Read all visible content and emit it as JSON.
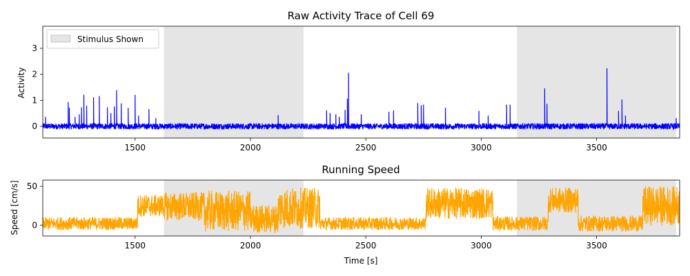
{
  "chart_data": [
    {
      "type": "line",
      "title": "Raw Activity Trace of Cell 69",
      "xlabel": "",
      "ylabel": "Activity",
      "xlim": [
        1100,
        3860
      ],
      "ylim": [
        -0.45,
        3.85
      ],
      "xticks": [
        1500,
        2000,
        2500,
        3000,
        3500
      ],
      "yticks": [
        0,
        1,
        2,
        3
      ],
      "legend": {
        "entries": [
          "Stimulus Shown"
        ],
        "placement": "top-left"
      },
      "stimulus_intervals": [
        [
          1625,
          2230
        ],
        [
          3155,
          3845
        ]
      ],
      "colors": {
        "trace": "#0000ff",
        "stimulus": "#d3d3d3"
      },
      "baseline": {
        "value": 0,
        "noise": 0.12
      },
      "series": [
        {
          "color": "#0000ff",
          "peaks": [
            [
              1112,
              0.35
            ],
            [
              1210,
              0.92
            ],
            [
              1215,
              0.7
            ],
            [
              1240,
              0.35
            ],
            [
              1258,
              0.45
            ],
            [
              1268,
              0.72
            ],
            [
              1278,
              1.2
            ],
            [
              1290,
              0.78
            ],
            [
              1320,
              1.1
            ],
            [
              1345,
              1.15
            ],
            [
              1380,
              0.72
            ],
            [
              1395,
              0.5
            ],
            [
              1410,
              0.75
            ],
            [
              1420,
              1.38
            ],
            [
              1440,
              0.87
            ],
            [
              1470,
              0.7
            ],
            [
              1500,
              1.2
            ],
            [
              1515,
              0.4
            ],
            [
              1560,
              0.65
            ],
            [
              1590,
              0.3
            ],
            [
              2120,
              0.42
            ],
            [
              2330,
              0.6
            ],
            [
              2345,
              0.5
            ],
            [
              2370,
              0.45
            ],
            [
              2385,
              0.35
            ],
            [
              2410,
              0.62
            ],
            [
              2420,
              1.05
            ],
            [
              2425,
              2.05
            ],
            [
              2480,
              0.45
            ],
            [
              2600,
              0.55
            ],
            [
              2620,
              0.6
            ],
            [
              2725,
              0.88
            ],
            [
              2740,
              0.8
            ],
            [
              2750,
              0.82
            ],
            [
              2845,
              0.7
            ],
            [
              2990,
              0.58
            ],
            [
              3030,
              0.4
            ],
            [
              3110,
              0.82
            ],
            [
              3125,
              0.82
            ],
            [
              3275,
              1.45
            ],
            [
              3285,
              0.85
            ],
            [
              3545,
              2.22
            ],
            [
              3595,
              0.58
            ],
            [
              3610,
              1.02
            ],
            [
              3625,
              0.4
            ],
            [
              3845,
              0.3
            ]
          ]
        }
      ]
    },
    {
      "type": "line",
      "title": "Running Speed",
      "xlabel": "Time [s]",
      "ylabel": "Speed [cm/s]",
      "xlim": [
        1100,
        3860
      ],
      "ylim": [
        -14,
        58
      ],
      "xticks": [
        1500,
        2000,
        2500,
        3000,
        3500
      ],
      "yticks": [
        0,
        50
      ],
      "stimulus_intervals": [
        [
          1625,
          2230
        ],
        [
          3155,
          3845
        ]
      ],
      "colors": {
        "trace": "#ffa500",
        "stimulus": "#d3d3d3"
      },
      "series": [
        {
          "color": "#ffa500",
          "segments": [
            {
              "x": [
                1100,
                1510
              ],
              "mean": 2,
              "amp": 8
            },
            {
              "x": [
                1510,
                1625
              ],
              "mean": 25,
              "amp": 14
            },
            {
              "x": [
                1625,
                1800
              ],
              "mean": 24,
              "amp": 18
            },
            {
              "x": [
                1800,
                2000
              ],
              "mean": 18,
              "amp": 26
            },
            {
              "x": [
                2000,
                2120
              ],
              "mean": 8,
              "amp": 18
            },
            {
              "x": [
                2120,
                2300
              ],
              "mean": 22,
              "amp": 26
            },
            {
              "x": [
                2300,
                2760
              ],
              "mean": 2,
              "amp": 8
            },
            {
              "x": [
                2760,
                3050
              ],
              "mean": 28,
              "amp": 20
            },
            {
              "x": [
                3050,
                3290
              ],
              "mean": 2,
              "amp": 9
            },
            {
              "x": [
                3290,
                3420
              ],
              "mean": 32,
              "amp": 16
            },
            {
              "x": [
                3420,
                3700
              ],
              "mean": 2,
              "amp": 10
            },
            {
              "x": [
                3700,
                3860
              ],
              "mean": 25,
              "amp": 25
            }
          ]
        }
      ]
    }
  ]
}
